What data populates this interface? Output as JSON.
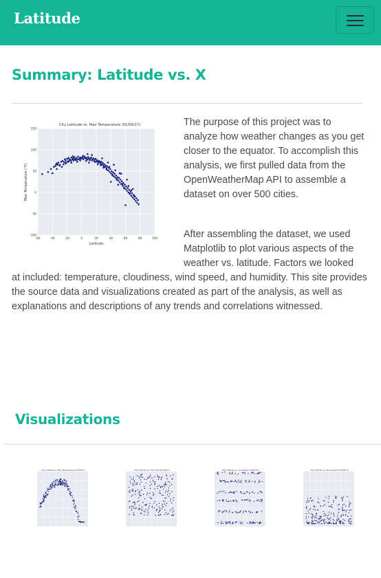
{
  "navbar": {
    "brand": "Latitude",
    "menu_icon": "hamburger-icon",
    "background": "#14b497"
  },
  "summary": {
    "title": "Summary: Latitude vs. X",
    "paragraph1": "The purpose of this project was to analyze how weather changes as you get closer to the equator. To accomplish this analysis, we first pulled data from the OpenWeatherMap API to assemble a dataset on over 500 cities.",
    "paragraph2_line1": "After assembling the dataset, we used",
    "paragraph2_line2": "Matplotlib to plot various aspects of the",
    "paragraph2_line3": "weather vs. latitude. Factors we looked",
    "paragraph2_rest": "at included: temperature, cloudiness, wind speed, and humidity. This site provides the source data and visualizations created as part of the analysis, as well as explanations and descriptions of any trends and correlations witnessed."
  },
  "visualizations": {
    "title": "Visualizations",
    "thumbnails": [
      {
        "name": "max-temperature",
        "title": "City Latitude vs. Max Temperature (01/09/17)"
      },
      {
        "name": "humidity",
        "title": "City Latitude vs. Humidity (01/09/17)"
      },
      {
        "name": "cloudiness",
        "title": "City Latitude vs. Cloudiness (01/09/17)"
      },
      {
        "name": "wind-speed",
        "title": "City Latitude vs. Wind Speed (01/09/17)"
      }
    ]
  },
  "chart_data": {
    "type": "scatter",
    "title": "City Latitude vs. Max Temperature (01/09/17)",
    "xlabel": "Latitude",
    "ylabel": "Max Temperature (°F)",
    "xlim": [
      -60,
      100
    ],
    "ylim": [
      -100,
      150
    ],
    "xticks": [
      -60,
      -40,
      -20,
      0,
      20,
      40,
      60,
      80,
      100
    ],
    "yticks": [
      -100,
      -50,
      0,
      50,
      100,
      150
    ],
    "grid": true,
    "marker_color": "#1a237e",
    "plot_background": "#e8eaf2",
    "series": [
      {
        "x": [
          -54,
          -46,
          -42,
          -38,
          -36,
          -35,
          -34,
          -33,
          -32,
          -30,
          -28,
          -26,
          -25,
          -24,
          -23,
          -22,
          -21,
          -20,
          -19,
          -18,
          -17,
          -16,
          -15,
          -14,
          -13,
          -12,
          -11,
          -10,
          -9,
          -8,
          -7,
          -6,
          -5,
          -4,
          -3,
          -2,
          -1,
          0,
          1,
          2,
          3,
          4,
          5,
          6,
          7,
          8,
          9,
          10,
          11,
          12,
          13,
          14,
          15,
          16,
          17,
          18,
          19,
          20,
          21,
          22,
          23,
          24,
          25,
          26,
          27,
          28,
          29,
          30,
          31,
          32,
          33,
          34,
          35,
          36,
          37,
          38,
          39,
          40,
          41,
          42,
          43,
          44,
          45,
          46,
          47,
          48,
          49,
          50,
          51,
          52,
          53,
          54,
          55,
          56,
          57,
          58,
          59,
          60,
          61,
          62,
          63,
          64,
          65,
          66,
          67,
          68,
          69,
          70,
          71,
          72,
          73,
          74,
          75,
          76,
          77,
          78,
          -34,
          -30,
          -27,
          -22,
          -18,
          -14,
          -10,
          -6,
          -2,
          2,
          6,
          10,
          14,
          18,
          22,
          26,
          30,
          34,
          38,
          42,
          46,
          50,
          54,
          58,
          62,
          66,
          70,
          -40,
          -12,
          8,
          28,
          44,
          56,
          64,
          72,
          36,
          48,
          60,
          52,
          40,
          68
        ],
        "y": [
          43,
          48,
          55,
          60,
          62,
          66,
          68,
          65,
          70,
          63,
          72,
          74,
          66,
          71,
          78,
          75,
          70,
          79,
          73,
          81,
          76,
          78,
          74,
          82,
          77,
          80,
          75,
          83,
          79,
          76,
          81,
          77,
          84,
          78,
          80,
          82,
          79,
          81,
          83,
          78,
          80,
          84,
          82,
          79,
          81,
          77,
          83,
          80,
          76,
          79,
          82,
          75,
          78,
          80,
          74,
          77,
          79,
          72,
          76,
          73,
          70,
          74,
          71,
          68,
          72,
          65,
          69,
          62,
          66,
          60,
          63,
          57,
          61,
          52,
          58,
          49,
          55,
          45,
          50,
          42,
          47,
          38,
          44,
          35,
          40,
          32,
          36,
          28,
          34,
          24,
          30,
          20,
          26,
          16,
          22,
          12,
          18,
          8,
          14,
          4,
          10,
          0,
          6,
          -4,
          2,
          -8,
          -2,
          -12,
          -6,
          -16,
          -10,
          -20,
          -14,
          -24,
          -18,
          -28,
          55,
          65,
          60,
          68,
          72,
          70,
          78,
          72,
          75,
          86,
          74,
          70,
          88,
          72,
          66,
          64,
          58,
          54,
          60,
          40,
          52,
          18,
          44,
          10,
          30,
          -2,
          8,
          45,
          85,
          90,
          80,
          65,
          20,
          15,
          -8,
          70,
          30,
          -30,
          45,
          25,
          5
        ]
      }
    ]
  }
}
